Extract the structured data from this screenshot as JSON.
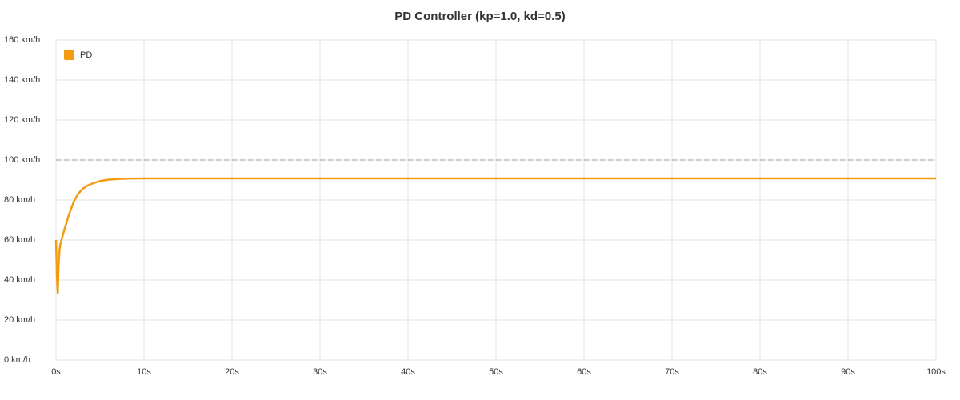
{
  "chart_data": {
    "type": "line",
    "title": "PD Controller (kp=1.0, kd=0.5)",
    "x": [
      0,
      0.1,
      0.2,
      0.3,
      0.4,
      0.5,
      1,
      1.5,
      2,
      2.5,
      3,
      3.5,
      4,
      5,
      6,
      7,
      8,
      10,
      20,
      30,
      40,
      50,
      60,
      70,
      80,
      90,
      100
    ],
    "series": [
      {
        "name": "PD",
        "color": "#f39c12",
        "values": [
          60,
          42,
          33,
          48,
          55,
          58,
          66,
          73,
          79,
          83,
          85.5,
          87,
          88,
          89.5,
          90.2,
          90.5,
          90.7,
          90.8,
          90.8,
          90.8,
          90.8,
          90.8,
          90.8,
          90.8,
          90.8,
          90.8,
          90.8
        ]
      }
    ],
    "reference_line": 100,
    "xlim": [
      0,
      100
    ],
    "xticks": [
      {
        "value": 0,
        "label": "0s"
      },
      {
        "value": 10,
        "label": "10s"
      },
      {
        "value": 20,
        "label": "20s"
      },
      {
        "value": 30,
        "label": "30s"
      },
      {
        "value": 40,
        "label": "40s"
      },
      {
        "value": 50,
        "label": "50s"
      },
      {
        "value": 60,
        "label": "60s"
      },
      {
        "value": 70,
        "label": "70s"
      },
      {
        "value": 80,
        "label": "80s"
      },
      {
        "value": 90,
        "label": "90s"
      },
      {
        "value": 100,
        "label": "100s"
      }
    ],
    "ylim": [
      0,
      160
    ],
    "yticks": [
      {
        "value": 0,
        "label": "0 km/h"
      },
      {
        "value": 20,
        "label": "20 km/h"
      },
      {
        "value": 40,
        "label": "40 km/h"
      },
      {
        "value": 60,
        "label": "60 km/h"
      },
      {
        "value": 80,
        "label": "80 km/h"
      },
      {
        "value": 100,
        "label": "100 km/h"
      },
      {
        "value": 120,
        "label": "120 km/h"
      },
      {
        "value": 140,
        "label": "140 km/h"
      },
      {
        "value": 160,
        "label": "160 km/h"
      }
    ],
    "grid": true,
    "legend": "top-left"
  }
}
